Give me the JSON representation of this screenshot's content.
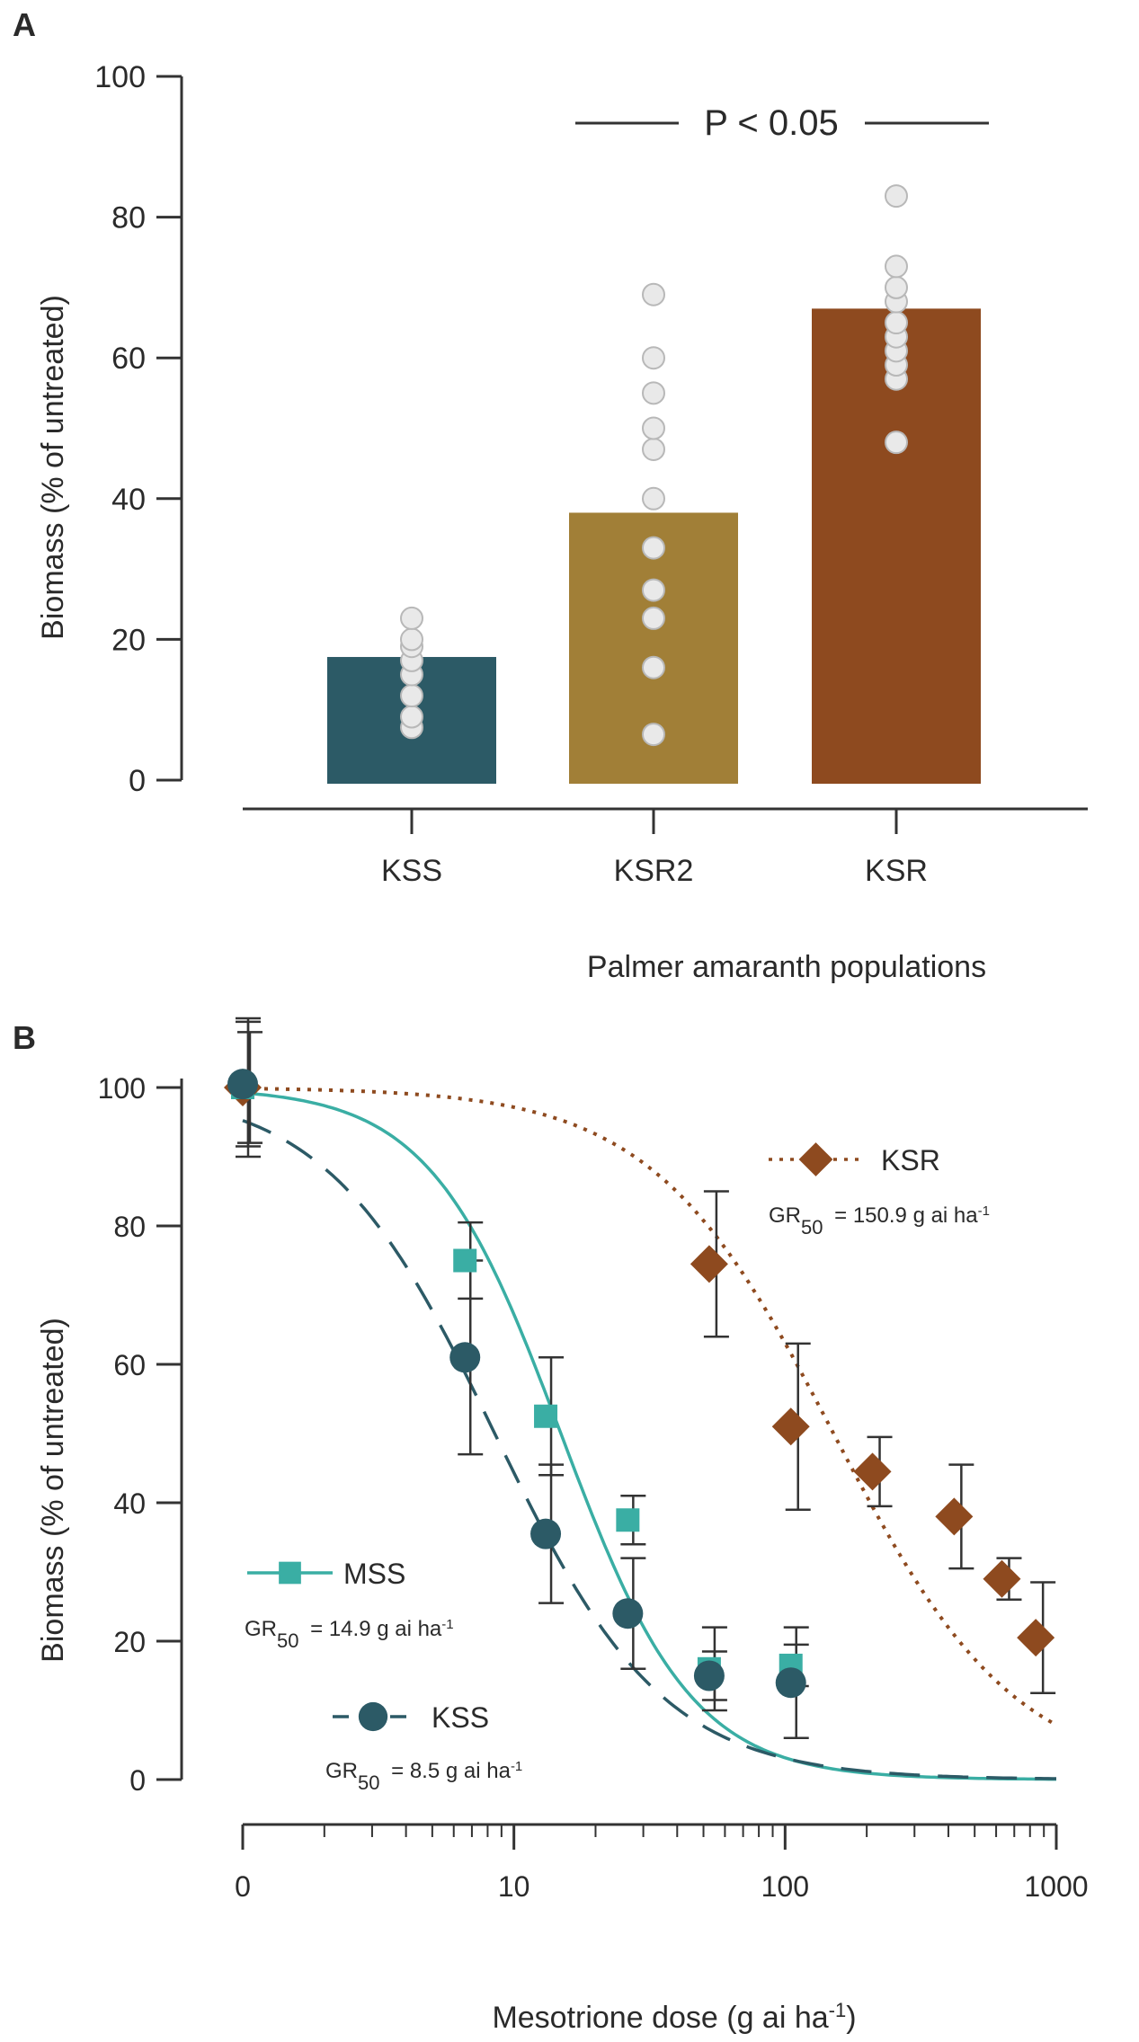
{
  "chart_data": [
    {
      "panel": "A",
      "type": "bar",
      "title": "",
      "xlabel": "Palmer amaranth populations",
      "ylabel": "Biomass (% of untreated)",
      "ylim": [
        0,
        100
      ],
      "yticks": [
        0,
        20,
        40,
        60,
        80,
        100
      ],
      "categories": [
        "KSS",
        "KSR2",
        "KSR"
      ],
      "values": [
        17.5,
        38,
        67
      ],
      "colors": [
        "#2c5a66",
        "#a17f37",
        "#8e4a1f"
      ],
      "points": [
        [
          7.5,
          9,
          12,
          15,
          17,
          19,
          20,
          23
        ],
        [
          6.5,
          16,
          23,
          27,
          33,
          40,
          47,
          50,
          55,
          60,
          69
        ],
        [
          48,
          57,
          59,
          61,
          63,
          65,
          68,
          70,
          73,
          83
        ]
      ],
      "annotation": {
        "text": "P < 0.05",
        "from": "KSR2",
        "to": "KSR"
      }
    },
    {
      "panel": "B",
      "type": "scatter",
      "title": "",
      "xlabel": "Mesotrione dose (g ai ha",
      "xlabel_sup": "-1",
      "xlabel_close": ")",
      "ylabel": "Biomass (% of untreated)",
      "xscale": "log",
      "xticks": [
        {
          "value": 1,
          "label": "0"
        },
        {
          "value": 10,
          "label": "10"
        },
        {
          "value": 100,
          "label": "100"
        },
        {
          "value": 1000,
          "label": "1000"
        }
      ],
      "xlim": [
        1,
        1000
      ],
      "ylim": [
        0,
        100
      ],
      "yticks": [
        0,
        20,
        40,
        60,
        80,
        100
      ],
      "series": [
        {
          "name": "KSR",
          "color": "#8e4a1f",
          "marker": "diamond",
          "line": "dotted",
          "gr50_prefix": "GR",
          "gr50_sub": "50",
          "gr50_value": "=  150.9 g ai ha",
          "gr50_sup": "-1",
          "x": [
            1,
            52.5,
            105,
            210,
            420,
            630,
            840
          ],
          "y": [
            100,
            74.5,
            51,
            44.5,
            38,
            29,
            20.5
          ],
          "err": [
            8,
            10.5,
            12,
            5,
            7.5,
            3,
            8
          ],
          "fit": {
            "top": 100,
            "bottom": 0,
            "gr50": 150.9,
            "slope": 1.3
          }
        },
        {
          "name": "MSS",
          "color": "#3aaea4",
          "marker": "square",
          "line": "solid",
          "gr50_prefix": "GR",
          "gr50_sub": "50",
          "gr50_value": "=  14.9 g ai ha",
          "gr50_sup": "-1",
          "x": [
            1,
            6.6,
            13.1,
            26.3,
            52.5,
            105
          ],
          "y": [
            100,
            75,
            52.5,
            37.5,
            16,
            16.5
          ],
          "err": [
            10,
            5.5,
            8.5,
            3.5,
            6,
            3
          ],
          "fit": {
            "top": 100,
            "bottom": 0,
            "gr50": 14.9,
            "slope": 1.8
          }
        },
        {
          "name": "KSS",
          "color": "#2c5a66",
          "marker": "circle",
          "line": "dashed",
          "gr50_prefix": "GR",
          "gr50_sub": "50",
          "gr50_value": "=  8.5 g ai ha",
          "gr50_sup": "-1",
          "x": [
            1,
            6.6,
            13.1,
            26.3,
            52.5,
            105
          ],
          "y": [
            100.5,
            61,
            35.5,
            24,
            15,
            14
          ],
          "err": [
            9,
            14,
            10,
            8,
            3.5,
            8
          ],
          "fit": {
            "top": 100,
            "bottom": 0,
            "gr50": 8.5,
            "slope": 1.4
          }
        }
      ]
    }
  ],
  "panel_labels": {
    "a": "A",
    "b": "B"
  }
}
